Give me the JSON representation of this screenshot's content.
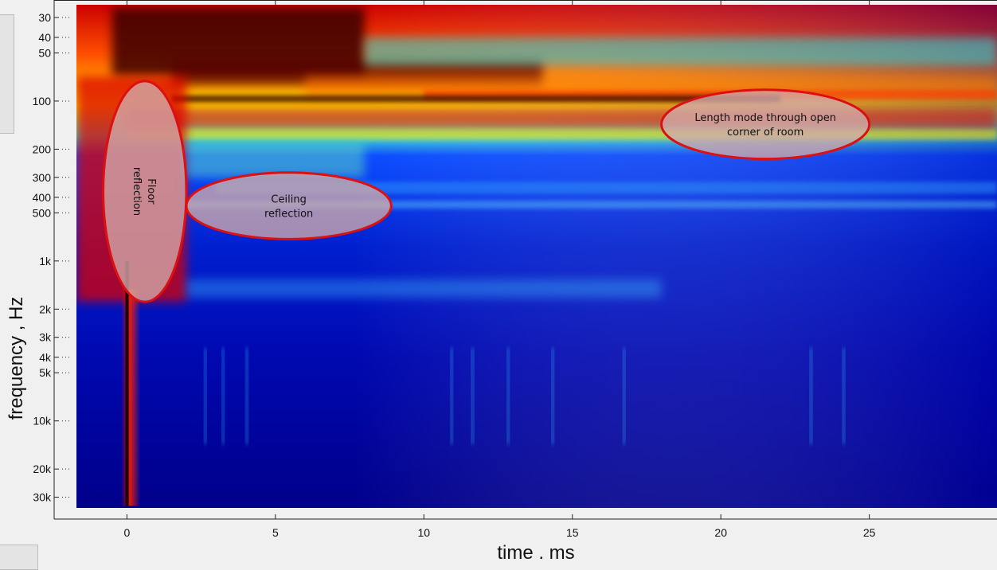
{
  "chart_data": {
    "type": "heatmap",
    "xlabel": "time , ms",
    "ylabel": "frequency , Hz",
    "xlim": [
      -1.7,
      29.3
    ],
    "ylim": [
      25,
      35000
    ],
    "y_scale": "log",
    "x_ticks": [
      {
        "value": 0,
        "label": "0"
      },
      {
        "value": 5,
        "label": "5"
      },
      {
        "value": 10,
        "label": "10"
      },
      {
        "value": 15,
        "label": "15"
      },
      {
        "value": 20,
        "label": "20"
      },
      {
        "value": 25,
        "label": "25"
      }
    ],
    "y_ticks": [
      {
        "value": 30,
        "label": "30"
      },
      {
        "value": 40,
        "label": "40"
      },
      {
        "value": 50,
        "label": "50"
      },
      {
        "value": 100,
        "label": "100"
      },
      {
        "value": 200,
        "label": "200"
      },
      {
        "value": 300,
        "label": "300"
      },
      {
        "value": 400,
        "label": "400"
      },
      {
        "value": 500,
        "label": "500"
      },
      {
        "value": 1000,
        "label": "1k"
      },
      {
        "value": 2000,
        "label": "2k"
      },
      {
        "value": 3000,
        "label": "3k"
      },
      {
        "value": 4000,
        "label": "4k"
      },
      {
        "value": 5000,
        "label": "5k"
      },
      {
        "value": 10000,
        "label": "10k"
      },
      {
        "value": 20000,
        "label": "20k"
      },
      {
        "value": 30000,
        "label": "30k"
      }
    ],
    "colormap": "jet",
    "grid": false,
    "annotations": [
      {
        "text_lines": [
          "Floor",
          "reflection"
        ],
        "time_range": [
          -0.8,
          2.0
        ],
        "freq_range": [
          75,
          1800
        ],
        "rotation": "vertical"
      },
      {
        "text_lines": [
          "Ceiling",
          "reflection"
        ],
        "time_range": [
          2.0,
          8.9
        ],
        "freq_range": [
          280,
          730
        ],
        "rotation": "none"
      },
      {
        "text_lines": [
          "Length mode through open",
          "corner of room"
        ],
        "time_range": [
          18.0,
          25.0
        ],
        "freq_range": [
          85,
          230
        ],
        "rotation": "none"
      }
    ],
    "colors": {
      "annotation_outline": "#dc1010",
      "annotation_fill": "#d2aaaa"
    }
  }
}
